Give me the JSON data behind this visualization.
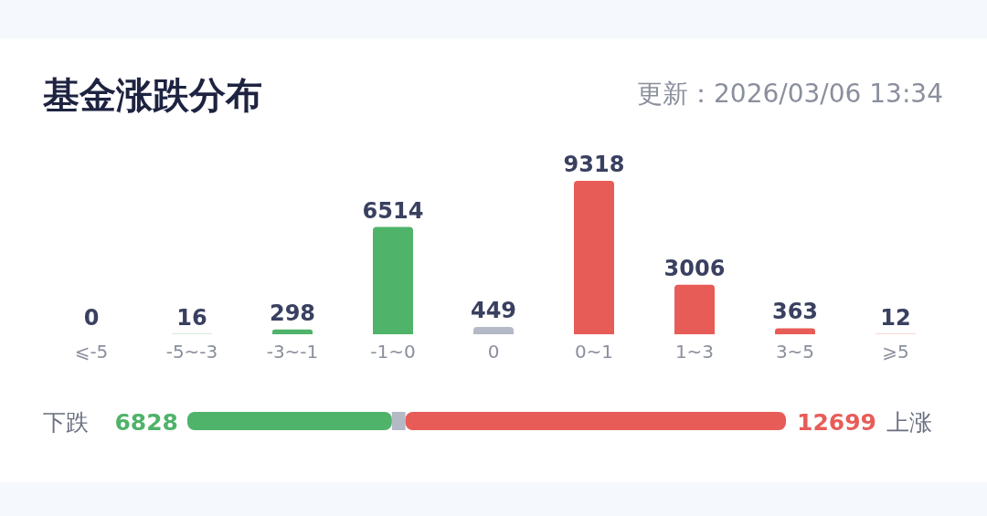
{
  "chart_data": [
    {
      "type": "bar",
      "title": "基金涨跌分布",
      "subtitle": "更新：2026/03/06 13:34",
      "categories": [
        "⩽-5",
        "-5~-3",
        "-3~-1",
        "-1~0",
        "0",
        "0~1",
        "1~3",
        "3~5",
        "⩾5"
      ],
      "values": [
        0,
        16,
        298,
        6514,
        449,
        9318,
        3006,
        363,
        12
      ],
      "colors": [
        "#4fb36a",
        "#4fb36a",
        "#4fb36a",
        "#4fb36a",
        "#b3b9c5",
        "#e85c58",
        "#e85c58",
        "#e85c58",
        "#e85c58"
      ],
      "data_labels": true
    },
    {
      "type": "bar",
      "orientation": "horizontal",
      "stacked": true,
      "categories": [
        null
      ],
      "annotations": [
        "下跌",
        "上涨"
      ],
      "series": [
        {
          "color": "#4fb36a",
          "values": [
            6828
          ],
          "value_labels": [
            "6828"
          ]
        },
        {
          "color": "#b3b9c5",
          "values": [
            449
          ]
        },
        {
          "color": "#e85c58",
          "values": [
            12699
          ],
          "value_labels": [
            "12699"
          ]
        }
      ]
    }
  ]
}
